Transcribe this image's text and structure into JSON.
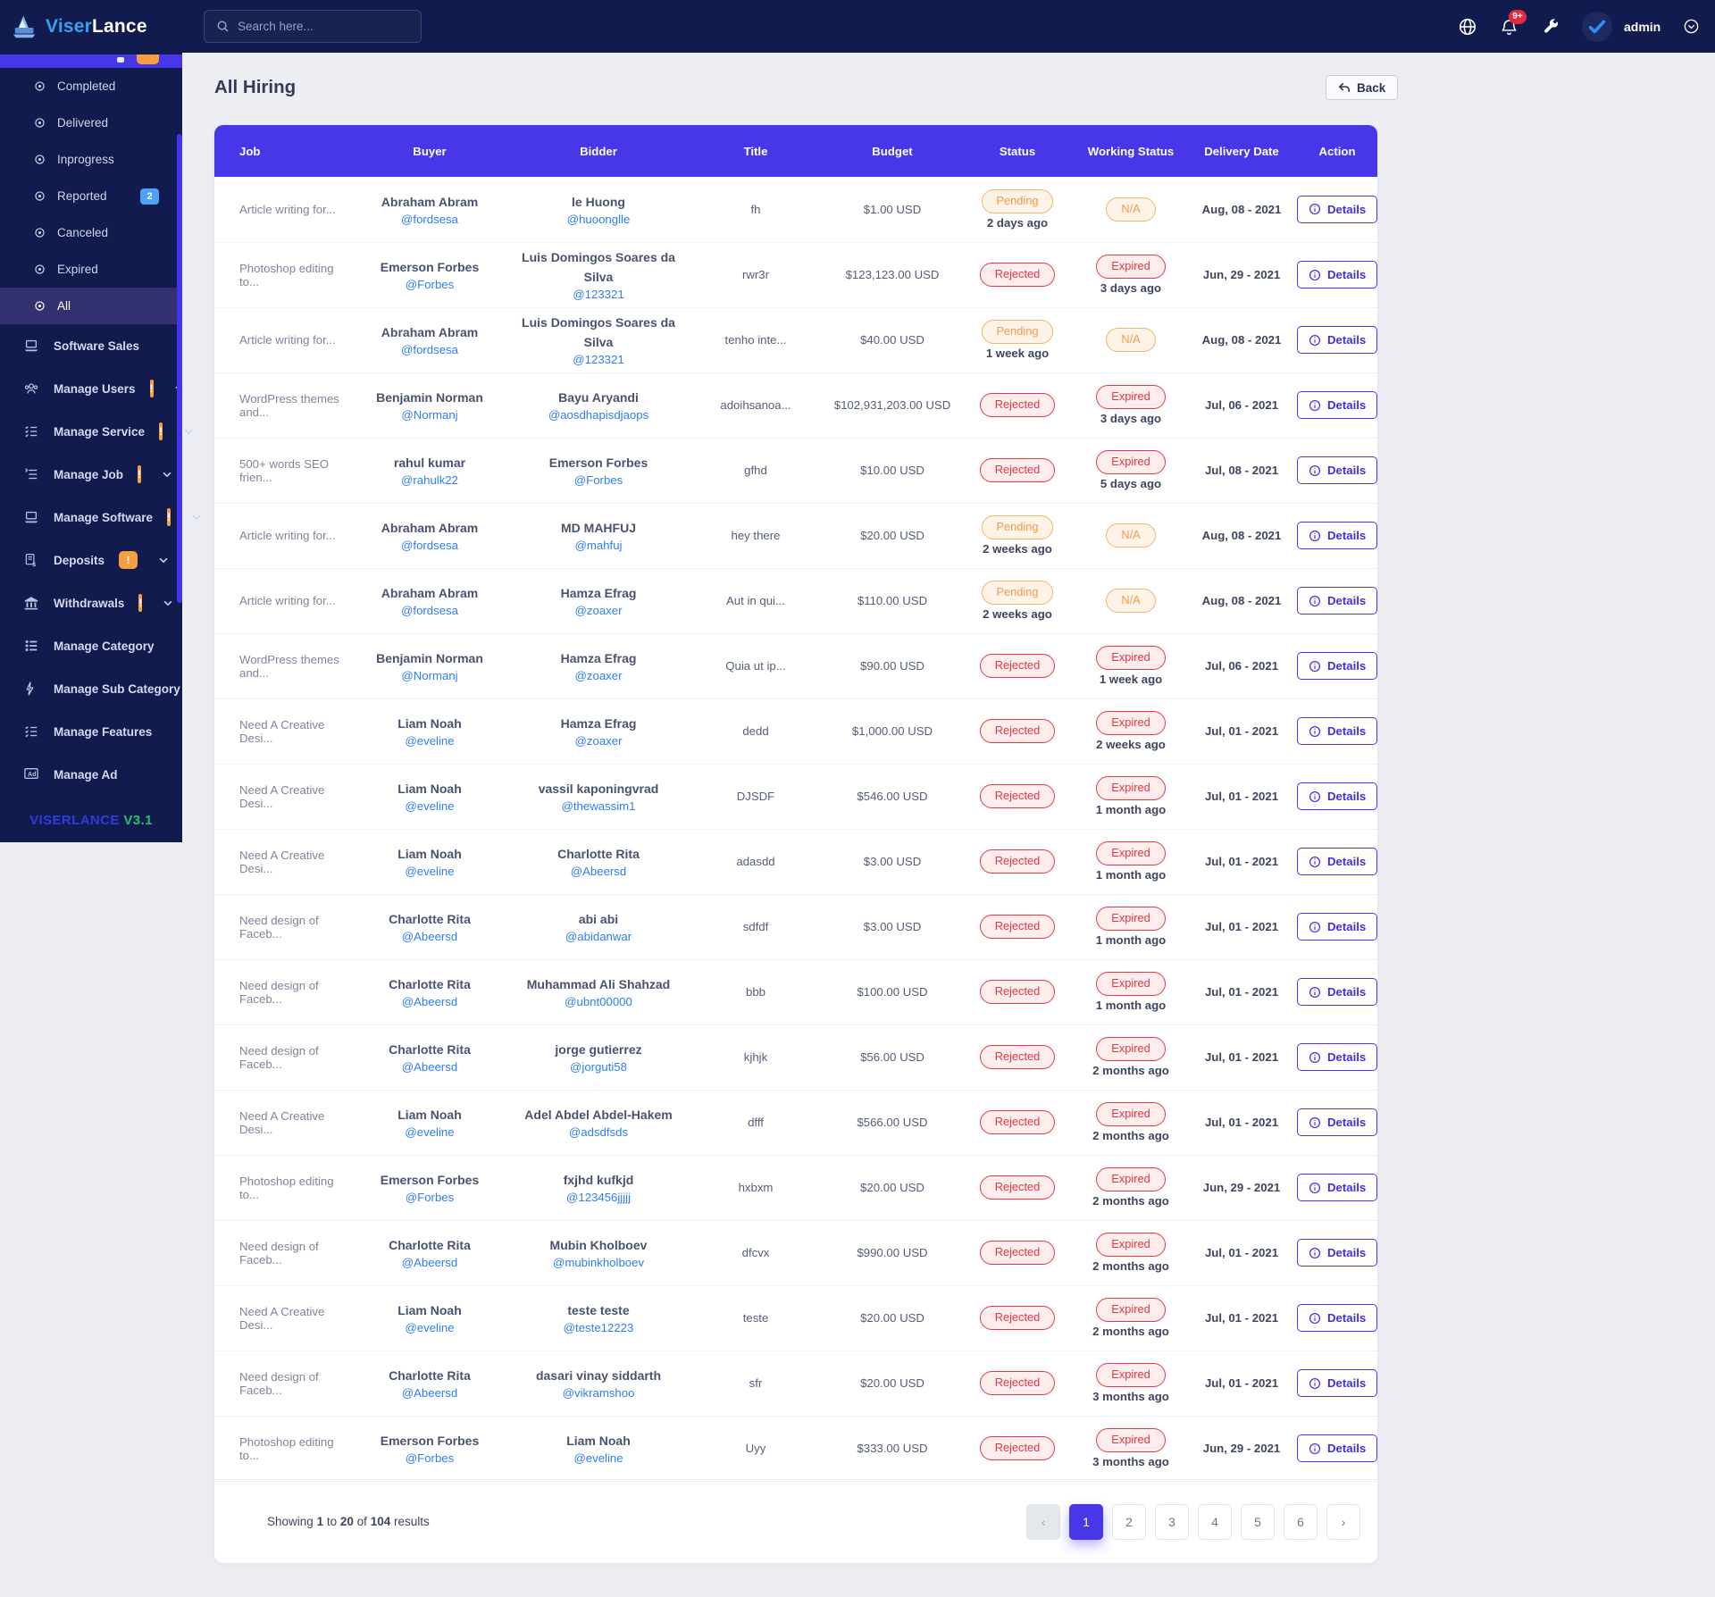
{
  "colors": {
    "navy": "#111b4e",
    "accent": "#4837e8",
    "orange": "#f59e42",
    "badge_blue": "#4aa3f7",
    "pending": "#f09a50",
    "rejected": "#e23744",
    "link_blue": "#2e7cf6",
    "version_green": "#27c26c",
    "version_blue": "#2f3bdc"
  },
  "topbar": {
    "search_placeholder": "Search here...",
    "notification_count": "9+",
    "admin_label": "admin",
    "icons": [
      "globe-icon",
      "bell-icon",
      "wrench-icon",
      "avatar-check-icon",
      "chevron-down-circle-icon"
    ]
  },
  "sidebar": {
    "logo": {
      "brand_bold": "Viser",
      "brand_light": "Lance",
      "icon": "viserlance-logo-icon"
    },
    "submenu": [
      {
        "label": "Completed",
        "icon": "circle-dot-icon"
      },
      {
        "label": "Delivered",
        "icon": "circle-dot-icon"
      },
      {
        "label": "Inprogress",
        "icon": "circle-dot-icon"
      },
      {
        "label": "Reported",
        "icon": "circle-dot-icon",
        "badge": "2"
      },
      {
        "label": "Canceled",
        "icon": "circle-dot-icon"
      },
      {
        "label": "Expired",
        "icon": "circle-dot-icon"
      },
      {
        "label": "All",
        "icon": "circle-dot-icon",
        "active": true
      }
    ],
    "menu": [
      {
        "label": "Software Sales",
        "icon": "laptop-icon"
      },
      {
        "label": "Manage Users",
        "icon": "users-icon",
        "alert": "!",
        "expandable": true
      },
      {
        "label": "Manage Service",
        "icon": "list-check-icon",
        "alert": "!",
        "expandable": true
      },
      {
        "label": "Manage Job",
        "icon": "list-indent-icon",
        "alert": "!",
        "expandable": true
      },
      {
        "label": "Manage Software",
        "icon": "laptop-icon",
        "alert": "!",
        "expandable": true
      },
      {
        "label": "Deposits",
        "icon": "invoice-dollar-icon",
        "alert": "!",
        "expandable": true
      },
      {
        "label": "Withdrawals",
        "icon": "bank-icon",
        "alert": "!",
        "expandable": true
      },
      {
        "label": "Manage Category",
        "icon": "list-bars-icon"
      },
      {
        "label": "Manage Sub Category",
        "icon": "bolt-icon"
      },
      {
        "label": "Manage Features",
        "icon": "list-check-icon"
      },
      {
        "label": "Manage Ad",
        "icon": "ad-icon"
      }
    ],
    "version": {
      "brand": "VISERLANCE",
      "ver": "V3.1"
    }
  },
  "page": {
    "title": "All Hiring",
    "back_label": "Back"
  },
  "table": {
    "headers": [
      "Job",
      "Buyer",
      "Bidder",
      "Title",
      "Budget",
      "Status",
      "Working Status",
      "Delivery Date",
      "Action"
    ],
    "action_label": "Details",
    "rows": [
      {
        "job": "Article writing for...",
        "buyer_name": "Abraham Abram",
        "buyer_user": "@fordsesa",
        "bidder_name": "le Huong",
        "bidder_user": "@huoonglle",
        "title": "fh",
        "budget": "$1.00 USD",
        "status": "Pending",
        "status_time": "2 days ago",
        "working_status": "N/A",
        "working_time": "",
        "date": "Aug, 08 - 2021"
      },
      {
        "job": "Photoshop editing to...",
        "buyer_name": "Emerson Forbes",
        "buyer_user": "@Forbes",
        "bidder_name": "Luis Domingos Soares da Silva",
        "bidder_user": "@123321",
        "title": "rwr3r",
        "budget": "$123,123.00 USD",
        "status": "Rejected",
        "status_time": "",
        "working_status": "Expired",
        "working_time": "3 days ago",
        "date": "Jun, 29 - 2021"
      },
      {
        "job": "Article writing for...",
        "buyer_name": "Abraham Abram",
        "buyer_user": "@fordsesa",
        "bidder_name": "Luis Domingos Soares da Silva",
        "bidder_user": "@123321",
        "title": "tenho inte...",
        "budget": "$40.00 USD",
        "status": "Pending",
        "status_time": "1 week ago",
        "working_status": "N/A",
        "working_time": "",
        "date": "Aug, 08 - 2021"
      },
      {
        "job": "WordPress themes and...",
        "buyer_name": "Benjamin Norman",
        "buyer_user": "@Normanj",
        "bidder_name": "Bayu Aryandi",
        "bidder_user": "@aosdhapisdjaops",
        "title": "adoihsanoa...",
        "budget": "$102,931,203.00 USD",
        "status": "Rejected",
        "status_time": "",
        "working_status": "Expired",
        "working_time": "3 days ago",
        "date": "Jul, 06 - 2021"
      },
      {
        "job": "500+ words SEO frien...",
        "buyer_name": "rahul kumar",
        "buyer_user": "@rahulk22",
        "bidder_name": "Emerson Forbes",
        "bidder_user": "@Forbes",
        "title": "gfhd",
        "budget": "$10.00 USD",
        "status": "Rejected",
        "status_time": "",
        "working_status": "Expired",
        "working_time": "5 days ago",
        "date": "Jul, 08 - 2021"
      },
      {
        "job": "Article writing for...",
        "buyer_name": "Abraham Abram",
        "buyer_user": "@fordsesa",
        "bidder_name": "MD MAHFUJ",
        "bidder_user": "@mahfuj",
        "title": "hey there",
        "budget": "$20.00 USD",
        "status": "Pending",
        "status_time": "2 weeks ago",
        "working_status": "N/A",
        "working_time": "",
        "date": "Aug, 08 - 2021"
      },
      {
        "job": "Article writing for...",
        "buyer_name": "Abraham Abram",
        "buyer_user": "@fordsesa",
        "bidder_name": "Hamza Efrag",
        "bidder_user": "@zoaxer",
        "title": "Aut in qui...",
        "budget": "$110.00 USD",
        "status": "Pending",
        "status_time": "2 weeks ago",
        "working_status": "N/A",
        "working_time": "",
        "date": "Aug, 08 - 2021"
      },
      {
        "job": "WordPress themes and...",
        "buyer_name": "Benjamin Norman",
        "buyer_user": "@Normanj",
        "bidder_name": "Hamza Efrag",
        "bidder_user": "@zoaxer",
        "title": "Quia ut ip...",
        "budget": "$90.00 USD",
        "status": "Rejected",
        "status_time": "",
        "working_status": "Expired",
        "working_time": "1 week ago",
        "date": "Jul, 06 - 2021"
      },
      {
        "job": "Need A Creative Desi...",
        "buyer_name": "Liam Noah",
        "buyer_user": "@eveline",
        "bidder_name": "Hamza Efrag",
        "bidder_user": "@zoaxer",
        "title": "dedd",
        "budget": "$1,000.00 USD",
        "status": "Rejected",
        "status_time": "",
        "working_status": "Expired",
        "working_time": "2 weeks ago",
        "date": "Jul, 01 - 2021"
      },
      {
        "job": "Need A Creative Desi...",
        "buyer_name": "Liam Noah",
        "buyer_user": "@eveline",
        "bidder_name": "vassil kaponingvrad",
        "bidder_user": "@thewassim1",
        "title": "DJSDF",
        "budget": "$546.00 USD",
        "status": "Rejected",
        "status_time": "",
        "working_status": "Expired",
        "working_time": "1 month ago",
        "date": "Jul, 01 - 2021"
      },
      {
        "job": "Need A Creative Desi...",
        "buyer_name": "Liam Noah",
        "buyer_user": "@eveline",
        "bidder_name": "Charlotte Rita",
        "bidder_user": "@Abeersd",
        "title": "adasdd",
        "budget": "$3.00 USD",
        "status": "Rejected",
        "status_time": "",
        "working_status": "Expired",
        "working_time": "1 month ago",
        "date": "Jul, 01 - 2021"
      },
      {
        "job": "Need design of Faceb...",
        "buyer_name": "Charlotte Rita",
        "buyer_user": "@Abeersd",
        "bidder_name": "abi abi",
        "bidder_user": "@abidanwar",
        "title": "sdfdf",
        "budget": "$3.00 USD",
        "status": "Rejected",
        "status_time": "",
        "working_status": "Expired",
        "working_time": "1 month ago",
        "date": "Jul, 01 - 2021"
      },
      {
        "job": "Need design of Faceb...",
        "buyer_name": "Charlotte Rita",
        "buyer_user": "@Abeersd",
        "bidder_name": "Muhammad Ali Shahzad",
        "bidder_user": "@ubnt00000",
        "title": "bbb",
        "budget": "$100.00 USD",
        "status": "Rejected",
        "status_time": "",
        "working_status": "Expired",
        "working_time": "1 month ago",
        "date": "Jul, 01 - 2021"
      },
      {
        "job": "Need design of Faceb...",
        "buyer_name": "Charlotte Rita",
        "buyer_user": "@Abeersd",
        "bidder_name": "jorge gutierrez",
        "bidder_user": "@jorguti58",
        "title": "kjhjk",
        "budget": "$56.00 USD",
        "status": "Rejected",
        "status_time": "",
        "working_status": "Expired",
        "working_time": "2 months ago",
        "date": "Jul, 01 - 2021"
      },
      {
        "job": "Need A Creative Desi...",
        "buyer_name": "Liam Noah",
        "buyer_user": "@eveline",
        "bidder_name": "Adel Abdel Abdel-Hakem",
        "bidder_user": "@adsdfsds",
        "title": "dfff",
        "budget": "$566.00 USD",
        "status": "Rejected",
        "status_time": "",
        "working_status": "Expired",
        "working_time": "2 months ago",
        "date": "Jul, 01 - 2021"
      },
      {
        "job": "Photoshop editing to...",
        "buyer_name": "Emerson Forbes",
        "buyer_user": "@Forbes",
        "bidder_name": "fxjhd kufkjd",
        "bidder_user": "@123456jjjjj",
        "title": "hxbxm",
        "budget": "$20.00 USD",
        "status": "Rejected",
        "status_time": "",
        "working_status": "Expired",
        "working_time": "2 months ago",
        "date": "Jun, 29 - 2021"
      },
      {
        "job": "Need design of Faceb...",
        "buyer_name": "Charlotte Rita",
        "buyer_user": "@Abeersd",
        "bidder_name": "Mubin Kholboev",
        "bidder_user": "@mubinkholboev",
        "title": "dfcvx",
        "budget": "$990.00 USD",
        "status": "Rejected",
        "status_time": "",
        "working_status": "Expired",
        "working_time": "2 months ago",
        "date": "Jul, 01 - 2021"
      },
      {
        "job": "Need A Creative Desi...",
        "buyer_name": "Liam Noah",
        "buyer_user": "@eveline",
        "bidder_name": "teste teste",
        "bidder_user": "@teste12223",
        "title": "teste",
        "budget": "$20.00 USD",
        "status": "Rejected",
        "status_time": "",
        "working_status": "Expired",
        "working_time": "2 months ago",
        "date": "Jul, 01 - 2021"
      },
      {
        "job": "Need design of Faceb...",
        "buyer_name": "Charlotte Rita",
        "buyer_user": "@Abeersd",
        "bidder_name": "dasari vinay siddarth",
        "bidder_user": "@vikramshoo",
        "title": "sfr",
        "budget": "$20.00 USD",
        "status": "Rejected",
        "status_time": "",
        "working_status": "Expired",
        "working_time": "3 months ago",
        "date": "Jul, 01 - 2021"
      },
      {
        "job": "Photoshop editing to...",
        "buyer_name": "Emerson Forbes",
        "buyer_user": "@Forbes",
        "bidder_name": "Liam Noah",
        "bidder_user": "@eveline",
        "title": "Uyy",
        "budget": "$333.00 USD",
        "status": "Rejected",
        "status_time": "",
        "working_status": "Expired",
        "working_time": "3 months ago",
        "date": "Jun, 29 - 2021"
      }
    ]
  },
  "footer": {
    "showing": {
      "t1": "Showing",
      "b1": "1",
      "t2": "to",
      "b2": "20",
      "t3": "of",
      "b3": "104",
      "t4": "results"
    },
    "pagination": {
      "prev": "‹",
      "pages": [
        "1",
        "2",
        "3",
        "4",
        "5",
        "6"
      ],
      "active": "1",
      "next": "›"
    }
  }
}
